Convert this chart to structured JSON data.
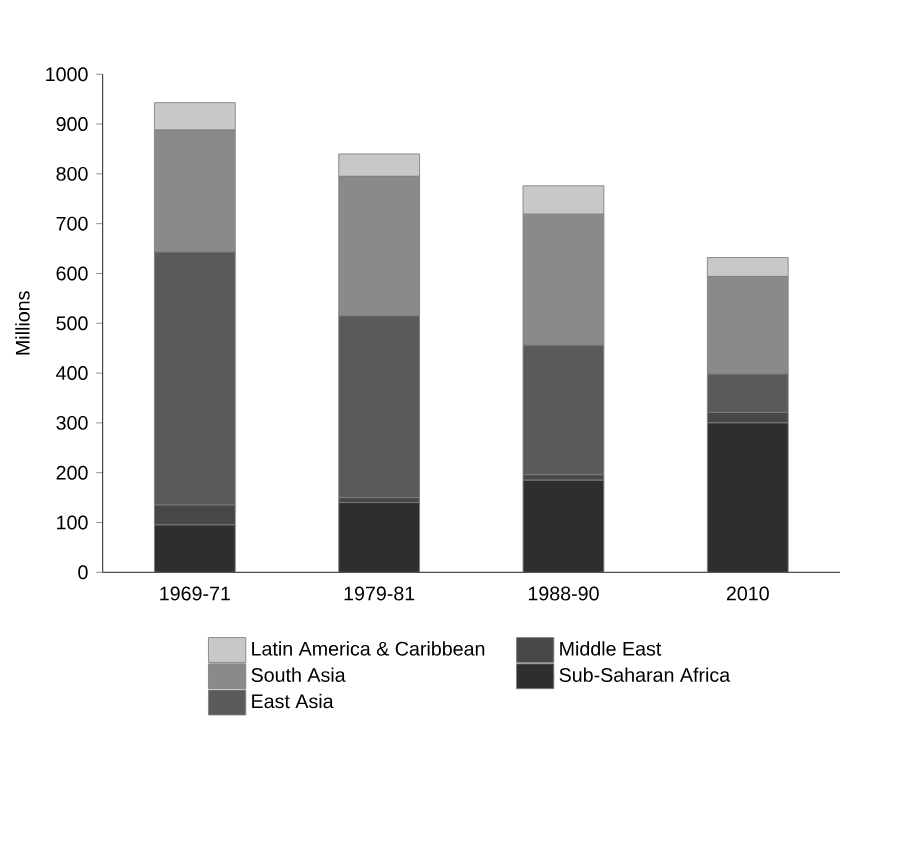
{
  "chart_data": {
    "type": "bar",
    "stacked": true,
    "ylabel": "Millions",
    "categories": [
      "1969-71",
      "1979-81",
      "1988-90",
      "2010"
    ],
    "series": [
      {
        "name": "Sub-Saharan Africa",
        "color": "#2e2e2e",
        "values": [
          95,
          140,
          185,
          300
        ]
      },
      {
        "name": "Middle East",
        "color": "#474747",
        "values": [
          40,
          10,
          11,
          21
        ]
      },
      {
        "name": "East Asia",
        "color": "#5a5a5a",
        "values": [
          508,
          365,
          260,
          77
        ]
      },
      {
        "name": "South Asia",
        "color": "#8a8a8a",
        "values": [
          245,
          280,
          263,
          196
        ]
      },
      {
        "name": "Latin America & Caribbean",
        "color": "#c8c8c8",
        "values": [
          55,
          45,
          57,
          38
        ]
      }
    ],
    "ylim": [
      0,
      1000
    ],
    "yticks": [
      0,
      100,
      200,
      300,
      400,
      500,
      600,
      700,
      800,
      900,
      1000
    ],
    "legend": "bottom",
    "grid": false
  }
}
